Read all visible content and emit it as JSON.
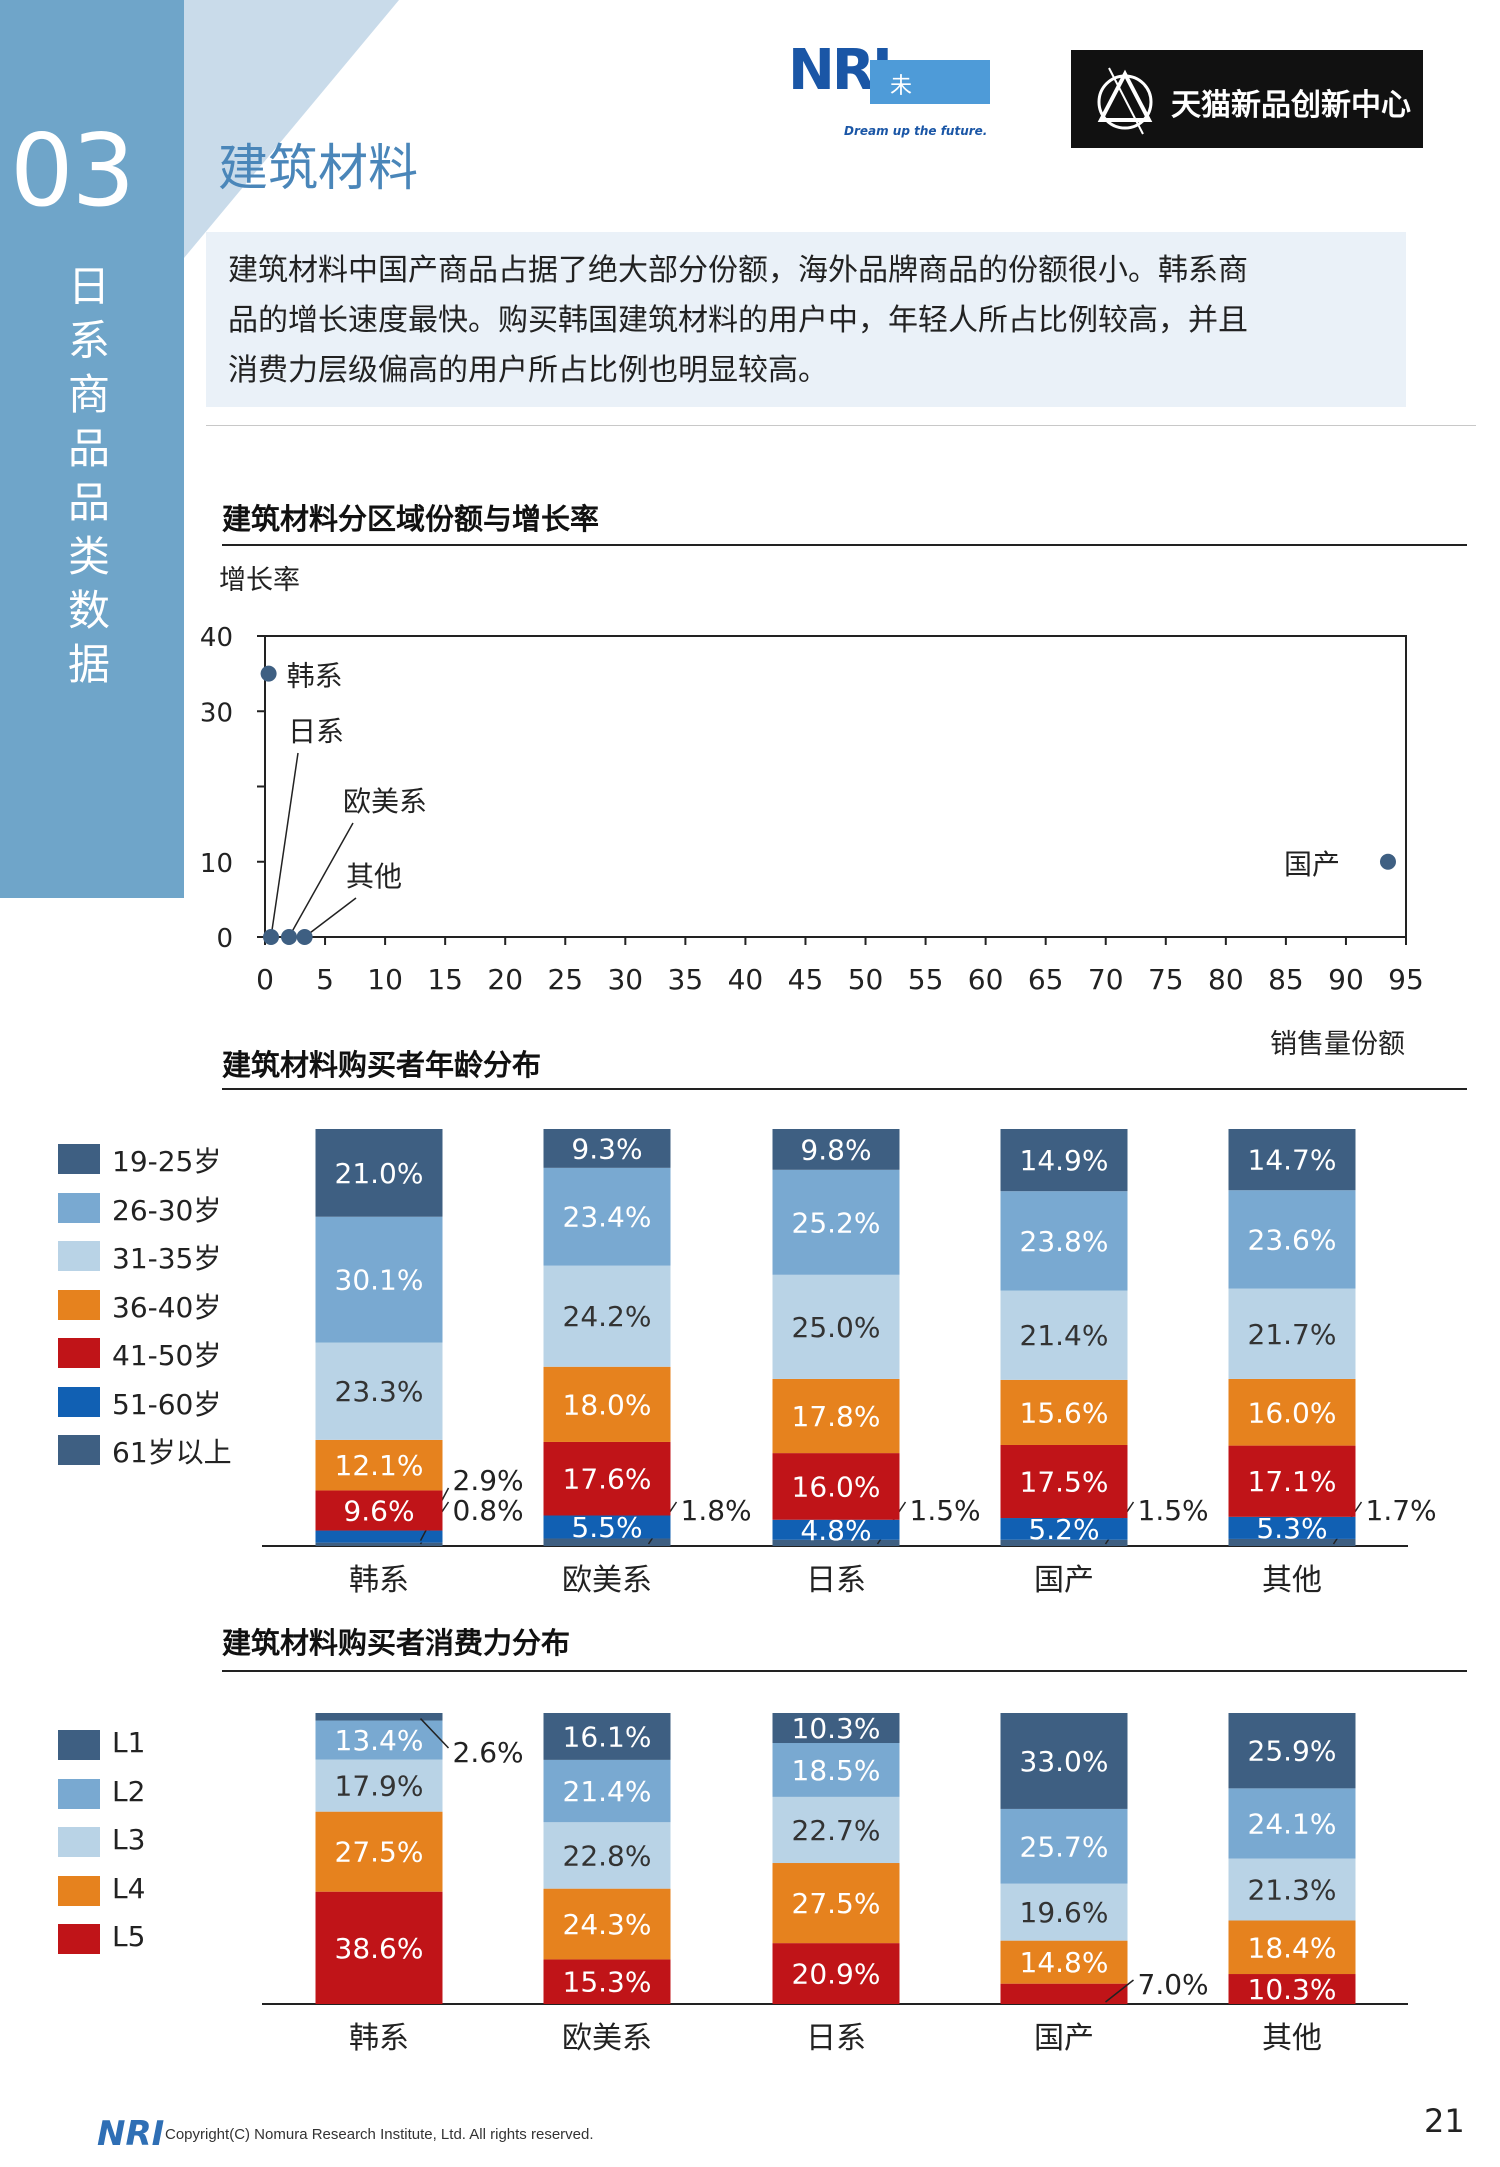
{
  "sidebar": {
    "number": "03",
    "vertical_label": [
      "日",
      "系",
      "商",
      "品",
      "品",
      "类",
      "数",
      "据"
    ]
  },
  "header": {
    "section_title": "建筑材料",
    "nri_logo_text": "NRI",
    "nri_tagline": "未来創発",
    "nri_sub": "Dream up the future.",
    "tmall_label": "天猫新品创新中心"
  },
  "intro": {
    "lines": [
      "建筑材料中国产商品占据了绝大部分份额，海外品牌商品的份额很小。韩系商",
      "品的增长速度最快。购买韩国建筑材料的用户中，年轻人所占比例较高，并且",
      "消费力层级偏高的用户所占比例也明显较高。"
    ]
  },
  "colors": {
    "c1": "#3e5f82",
    "c2": "#79a9d1",
    "c3": "#b9d3e6",
    "c4": "#e6821e",
    "c5": "#c01418",
    "c6": "#1160b3",
    "c7": "#3e5f82",
    "accent": "#4a86b9"
  },
  "chart_data": [
    {
      "type": "scatter",
      "title": "建筑材料分区域份额与增长率",
      "ylabel": "增长率",
      "xlabel": "销售量份额",
      "xlim": [
        0,
        95
      ],
      "ylim": [
        0,
        40
      ],
      "xticks": [
        0,
        5,
        10,
        15,
        20,
        25,
        30,
        35,
        40,
        45,
        50,
        55,
        60,
        65,
        70,
        75,
        80,
        85,
        90,
        95
      ],
      "yticks": [
        0,
        10,
        30,
        40
      ],
      "points": [
        {
          "label": "韩系",
          "x": 0.3,
          "y": 35
        },
        {
          "label": "日系",
          "x": 0.5,
          "y": 0
        },
        {
          "label": "欧美系",
          "x": 2.0,
          "y": 0
        },
        {
          "label": "其他",
          "x": 3.3,
          "y": 0
        },
        {
          "label": "国产",
          "x": 93.5,
          "y": 10
        }
      ]
    },
    {
      "type": "bar",
      "title": "建筑材料购买者年龄分布",
      "categories": [
        "韩系",
        "欧美系",
        "日系",
        "国产",
        "其他"
      ],
      "series": [
        {
          "name": "61岁以上",
          "values": [
            0.8,
            1.8,
            1.5,
            1.5,
            1.7
          ]
        },
        {
          "name": "51-60岁",
          "values": [
            2.9,
            5.5,
            4.8,
            5.2,
            5.3
          ]
        },
        {
          "name": "41-50岁",
          "values": [
            9.6,
            17.6,
            16.0,
            17.5,
            17.1
          ]
        },
        {
          "name": "36-40岁",
          "values": [
            12.1,
            18.0,
            17.8,
            15.6,
            16.0
          ]
        },
        {
          "name": "31-35岁",
          "values": [
            23.3,
            24.2,
            25.0,
            21.4,
            21.7
          ]
        },
        {
          "name": "26-30岁",
          "values": [
            30.1,
            23.4,
            25.2,
            23.8,
            23.6
          ]
        },
        {
          "name": "19-25岁",
          "values": [
            21.0,
            9.3,
            9.8,
            14.9,
            14.7
          ]
        }
      ],
      "legend": [
        "19-25岁",
        "26-30岁",
        "31-35岁",
        "36-40岁",
        "41-50岁",
        "51-60岁",
        "61岁以上"
      ]
    },
    {
      "type": "bar",
      "title": "建筑材料购买者消费力分布",
      "categories": [
        "韩系",
        "欧美系",
        "日系",
        "国产",
        "其他"
      ],
      "series": [
        {
          "name": "L5",
          "values": [
            38.6,
            15.3,
            20.9,
            7.0,
            10.3
          ]
        },
        {
          "name": "L4",
          "values": [
            27.5,
            24.3,
            27.5,
            14.8,
            18.4
          ]
        },
        {
          "name": "L3",
          "values": [
            17.9,
            22.8,
            22.7,
            19.6,
            21.3
          ]
        },
        {
          "name": "L2",
          "values": [
            13.4,
            21.4,
            18.5,
            25.7,
            24.1
          ]
        },
        {
          "name": "L1",
          "values": [
            2.6,
            16.1,
            10.3,
            33.0,
            25.9
          ]
        }
      ],
      "legend": [
        "L1",
        "L2",
        "L3",
        "L4",
        "L5"
      ]
    }
  ],
  "footer": {
    "logo": "NRI",
    "copyright": "Copyright(C) Nomura Research Institute, Ltd. All rights reserved.",
    "page_number": "21"
  }
}
